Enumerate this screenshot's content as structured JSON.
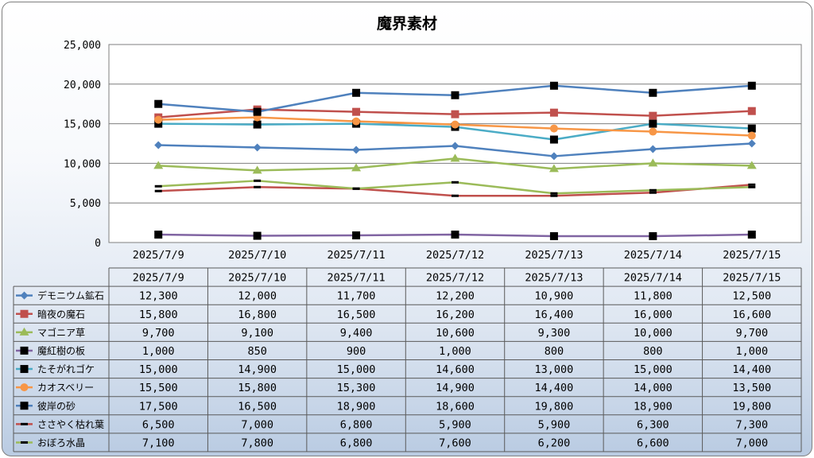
{
  "chart_data": {
    "type": "line",
    "title": "魔界素材",
    "xlabel": "",
    "ylabel": "",
    "ylim": [
      0,
      25000
    ],
    "yticks": [
      "0",
      "5,000",
      "10,000",
      "15,000",
      "20,000",
      "25,000"
    ],
    "grid": true,
    "legend": "data-table",
    "categories": [
      "2025/7/9",
      "2025/7/10",
      "2025/7/11",
      "2025/7/12",
      "2025/7/13",
      "2025/7/14",
      "2025/7/15"
    ],
    "series": [
      {
        "name": "デモニウム鉱石",
        "color": "#4f81bd",
        "marker": "diamond",
        "values": [
          12300,
          12000,
          11700,
          12200,
          10900,
          11800,
          12500
        ],
        "labels": [
          "12,300",
          "12,000",
          "11,700",
          "12,200",
          "10,900",
          "11,800",
          "12,500"
        ]
      },
      {
        "name": "暗夜の魔石",
        "color": "#c0504d",
        "marker": "square",
        "values": [
          15800,
          16800,
          16500,
          16200,
          16400,
          16000,
          16600
        ],
        "labels": [
          "15,800",
          "16,800",
          "16,500",
          "16,200",
          "16,400",
          "16,000",
          "16,600"
        ]
      },
      {
        "name": "マゴニア草",
        "color": "#9bbb59",
        "marker": "triangle",
        "values": [
          9700,
          9100,
          9400,
          10600,
          9300,
          10000,
          9700
        ],
        "labels": [
          "9,700",
          "9,100",
          "9,400",
          "10,600",
          "9,300",
          "10,000",
          "9,700"
        ]
      },
      {
        "name": "魔紅樹の板",
        "color": "#8064a2",
        "marker": "square-black",
        "values": [
          1000,
          850,
          900,
          1000,
          800,
          800,
          1000
        ],
        "labels": [
          "1,000",
          "850",
          "900",
          "1,000",
          "800",
          "800",
          "1,000"
        ]
      },
      {
        "name": "たそがれゴケ",
        "color": "#4bacc6",
        "marker": "square-black",
        "values": [
          15000,
          14900,
          15000,
          14600,
          13000,
          15000,
          14400
        ],
        "labels": [
          "15,000",
          "14,900",
          "15,000",
          "14,600",
          "13,000",
          "15,000",
          "14,400"
        ]
      },
      {
        "name": "カオスベリー",
        "color": "#f79646",
        "marker": "circle",
        "values": [
          15500,
          15800,
          15300,
          14900,
          14400,
          14000,
          13500
        ],
        "labels": [
          "15,500",
          "15,800",
          "15,300",
          "14,900",
          "14,400",
          "14,000",
          "13,500"
        ]
      },
      {
        "name": "彼岸の砂",
        "color": "#4f81bd",
        "marker": "square-black",
        "values": [
          17500,
          16500,
          18900,
          18600,
          19800,
          18900,
          19800
        ],
        "labels": [
          "17,500",
          "16,500",
          "18,900",
          "18,600",
          "19,800",
          "18,900",
          "19,800"
        ]
      },
      {
        "name": "ささやく枯れ葉",
        "color": "#c0504d",
        "marker": "dash",
        "values": [
          6500,
          7000,
          6800,
          5900,
          5900,
          6300,
          7300
        ],
        "labels": [
          "6,500",
          "7,000",
          "6,800",
          "5,900",
          "5,900",
          "6,300",
          "7,300"
        ]
      },
      {
        "name": "おぼろ水晶",
        "color": "#9bbb59",
        "marker": "dash",
        "values": [
          7100,
          7800,
          6800,
          7600,
          6200,
          6600,
          7000
        ],
        "labels": [
          "7,100",
          "7,800",
          "6,800",
          "7,600",
          "6,200",
          "6,600",
          "7,000"
        ]
      }
    ]
  }
}
